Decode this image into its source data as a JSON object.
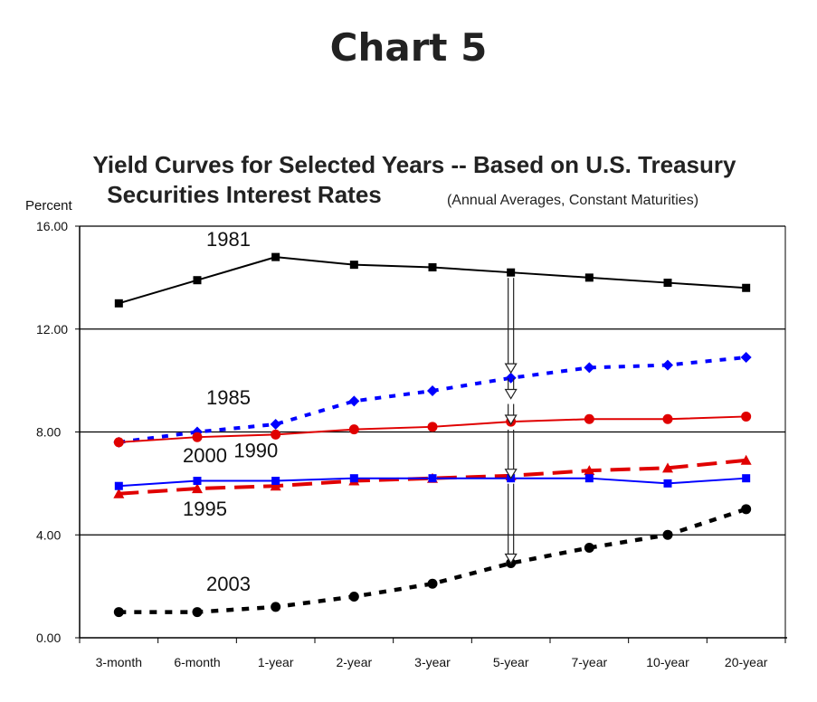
{
  "page": {
    "heading": "Chart 5"
  },
  "chart_data": {
    "type": "line",
    "title_line1": "Yield Curves for Selected Years -- Based on U.S. Treasury",
    "title_line2": "Securities Interest Rates",
    "subtitle": "(Annual Averages, Constant Maturities)",
    "ylabel": "Percent",
    "xlabel": "",
    "ylim": [
      0,
      16
    ],
    "yticks": [
      "0.00",
      "4.00",
      "8.00",
      "12.00",
      "16.00"
    ],
    "ytick_values": [
      0,
      4,
      8,
      12,
      16
    ],
    "grid": "horizontal",
    "categories": [
      "3-month",
      "6-month",
      "1-year",
      "2-year",
      "3-year",
      "5-year",
      "7-year",
      "10-year",
      "20-year"
    ],
    "series": [
      {
        "name": "1981",
        "color": "#000000",
        "style": "solid",
        "marker": "square",
        "values": [
          13.0,
          13.9,
          14.8,
          14.5,
          14.4,
          14.2,
          14.0,
          13.8,
          13.6
        ]
      },
      {
        "name": "1985",
        "color": "#0000ff",
        "style": "dotted",
        "marker": "diamond",
        "values": [
          7.6,
          8.0,
          8.3,
          9.2,
          9.6,
          10.1,
          10.5,
          10.6,
          10.9
        ]
      },
      {
        "name": "1990",
        "color": "#e00000",
        "style": "solid",
        "marker": "circle",
        "values": [
          7.6,
          7.8,
          7.9,
          8.1,
          8.2,
          8.4,
          8.5,
          8.5,
          8.6
        ]
      },
      {
        "name": "1995",
        "color": "#e00000",
        "style": "dashed",
        "marker": "triangle",
        "values": [
          5.6,
          5.8,
          5.9,
          6.1,
          6.2,
          6.3,
          6.5,
          6.6,
          6.9
        ]
      },
      {
        "name": "2000",
        "color": "#0000ff",
        "style": "solid",
        "marker": "square",
        "values": [
          5.9,
          6.1,
          6.1,
          6.2,
          6.2,
          6.2,
          6.2,
          6.0,
          6.2
        ]
      },
      {
        "name": "2003",
        "color": "#000000",
        "style": "dotted-heavy",
        "marker": "circle",
        "values": [
          1.0,
          1.0,
          1.2,
          1.6,
          2.1,
          2.9,
          3.5,
          4.0,
          5.0
        ]
      }
    ],
    "annotations": [
      "arrow at 5-year from 1981 curve down to 2003 curve"
    ]
  }
}
